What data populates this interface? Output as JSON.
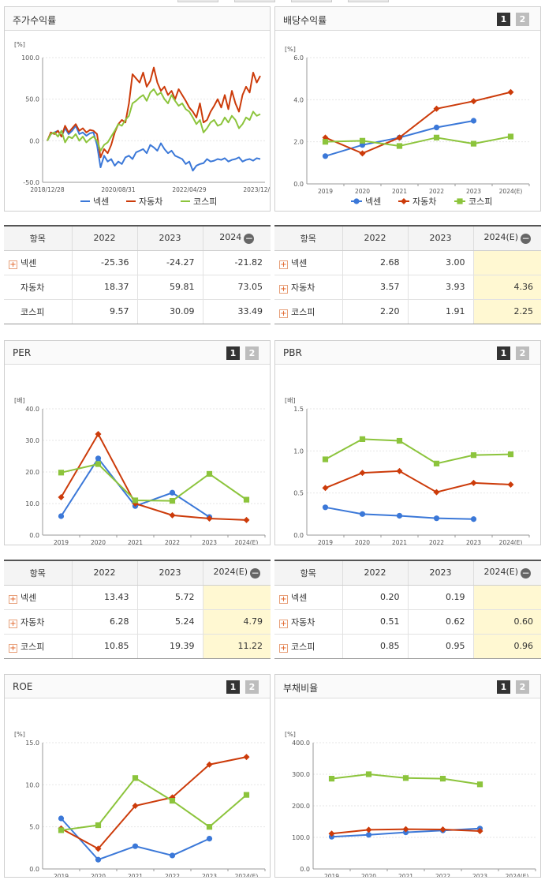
{
  "top_tabs": [
    "",
    "",
    "",
    "",
    ""
  ],
  "legend": [
    "넥센",
    "자동차",
    "코스피"
  ],
  "colors": {
    "nexen": "#3b78d8",
    "auto": "#cc3b0a",
    "kospi": "#8cc43c"
  },
  "pager": {
    "one": "1",
    "two": "2"
  },
  "minus_icon": "−",
  "plus_icon": "+",
  "charts": {
    "stock": {
      "title": "주가수익률",
      "unit": "[%]",
      "chart_data": {
        "type": "line",
        "title": "주가수익률",
        "yticks": [
          "100.0",
          "50.0",
          "0.0",
          "-50.0"
        ],
        "ylim": [
          -50,
          100
        ],
        "xticks": [
          "2018/12/28",
          "2020/08/31",
          "2022/04/29",
          "2023/12/28"
        ],
        "x_range": [
          "2018/12/28",
          "2023/12/28"
        ],
        "grid": true,
        "series": [
          {
            "name": "넥센",
            "values": [
              0,
              8,
              10,
              12,
              5,
              15,
              8,
              12,
              18,
              8,
              10,
              6,
              9,
              10,
              -5,
              -32,
              -18,
              -25,
              -22,
              -30,
              -25,
              -28,
              -20,
              -18,
              -22,
              -14,
              -12,
              -10,
              -15,
              -5,
              -8,
              -12,
              -3,
              -10,
              -15,
              -12,
              -18,
              -20,
              -22,
              -28,
              -25,
              -36,
              -30,
              -28,
              -27,
              -22,
              -25,
              -24,
              -22,
              -23,
              -21,
              -25,
              -23,
              -22,
              -20,
              -25,
              -23,
              -22,
              -24,
              -21,
              -22
            ]
          },
          {
            "name": "자동차",
            "values": [
              0,
              10,
              8,
              12,
              5,
              18,
              10,
              15,
              20,
              12,
              15,
              10,
              13,
              12,
              8,
              -20,
              -10,
              -15,
              -5,
              10,
              20,
              25,
              22,
              45,
              80,
              75,
              70,
              82,
              65,
              72,
              88,
              70,
              60,
              65,
              55,
              60,
              50,
              62,
              55,
              48,
              40,
              35,
              28,
              45,
              22,
              25,
              35,
              42,
              50,
              40,
              55,
              38,
              60,
              45,
              35,
              55,
              65,
              58,
              82,
              70,
              78
            ]
          },
          {
            "name": "코스피",
            "values": [
              0,
              8,
              10,
              5,
              12,
              -2,
              5,
              3,
              8,
              0,
              5,
              -2,
              2,
              5,
              0,
              -12,
              -5,
              -2,
              5,
              12,
              20,
              18,
              25,
              30,
              45,
              48,
              52,
              55,
              48,
              58,
              62,
              55,
              58,
              50,
              45,
              55,
              48,
              42,
              45,
              38,
              35,
              28,
              20,
              25,
              10,
              15,
              22,
              25,
              18,
              20,
              28,
              22,
              30,
              25,
              15,
              20,
              28,
              25,
              35,
              30,
              32
            ]
          }
        ]
      }
    },
    "dividend": {
      "title": "배당수익률",
      "unit": "[%]",
      "chart_data": {
        "type": "line",
        "title": "배당수익률",
        "categories": [
          "2019",
          "2020",
          "2021",
          "2022",
          "2023",
          "2024(E)"
        ],
        "yticks": [
          "6.0",
          "4.0",
          "2.0",
          "0.0"
        ],
        "ylim": [
          0,
          6
        ],
        "grid": true,
        "series": [
          {
            "name": "넥센",
            "values": [
              1.32,
              1.85,
              2.2,
              2.68,
              3.0,
              null
            ]
          },
          {
            "name": "자동차",
            "values": [
              2.2,
              1.45,
              2.2,
              3.57,
              3.93,
              4.36
            ]
          },
          {
            "name": "코스피",
            "values": [
              2.0,
              2.05,
              1.8,
              2.2,
              1.91,
              2.25
            ]
          }
        ]
      }
    },
    "per": {
      "title": "PER",
      "unit": "[배]",
      "chart_data": {
        "type": "line",
        "title": "PER",
        "categories": [
          "2019",
          "2020",
          "2021",
          "2022",
          "2023",
          "2024(E)"
        ],
        "yticks": [
          "40.0",
          "30.0",
          "20.0",
          "10.0",
          "0.0"
        ],
        "ylim": [
          0,
          40
        ],
        "grid": true,
        "series": [
          {
            "name": "넥센",
            "values": [
              6.0,
              24.3,
              9.2,
              13.43,
              5.72,
              null
            ]
          },
          {
            "name": "자동차",
            "values": [
              12.0,
              32.0,
              10.0,
              6.28,
              5.24,
              4.79
            ]
          },
          {
            "name": "코스피",
            "values": [
              19.8,
              22.5,
              11.0,
              10.85,
              19.39,
              11.22
            ]
          }
        ]
      }
    },
    "pbr": {
      "title": "PBR",
      "unit": "[배]",
      "chart_data": {
        "type": "line",
        "title": "PBR",
        "categories": [
          "2019",
          "2020",
          "2021",
          "2022",
          "2023",
          "2024(E)"
        ],
        "yticks": [
          "1.5",
          "1.0",
          "0.5",
          "0.0"
        ],
        "ylim": [
          0,
          1.5
        ],
        "grid": true,
        "series": [
          {
            "name": "넥센",
            "values": [
              0.33,
              0.25,
              0.23,
              0.2,
              0.19,
              null
            ]
          },
          {
            "name": "자동차",
            "values": [
              0.56,
              0.74,
              0.76,
              0.51,
              0.62,
              0.6
            ]
          },
          {
            "name": "코스피",
            "values": [
              0.9,
              1.14,
              1.12,
              0.85,
              0.95,
              0.96
            ]
          }
        ]
      }
    },
    "roe": {
      "title": "ROE",
      "unit": "[%]",
      "chart_data": {
        "type": "line",
        "title": "ROE",
        "categories": [
          "2019",
          "2020",
          "2021",
          "2022",
          "2023",
          "2024(E)"
        ],
        "yticks": [
          "15.0",
          "10.0",
          "5.0",
          "0.0"
        ],
        "ylim": [
          0,
          15
        ],
        "grid": true,
        "series": [
          {
            "name": "넥센",
            "values": [
              6.0,
              1.1,
              2.7,
              1.6,
              3.6,
              null
            ]
          },
          {
            "name": "자동차",
            "values": [
              4.8,
              2.4,
              7.5,
              8.5,
              12.4,
              13.3
            ]
          },
          {
            "name": "코스피",
            "values": [
              4.6,
              5.2,
              10.8,
              8.1,
              5.0,
              8.8
            ]
          }
        ]
      }
    },
    "debt": {
      "title": "부채비율",
      "unit": "[%]",
      "chart_data": {
        "type": "line",
        "title": "부채비율",
        "categories": [
          "2019",
          "2020",
          "2021",
          "2022",
          "2023",
          "2024(E)"
        ],
        "yticks": [
          "400.0",
          "300.0",
          "200.0",
          "100.0",
          "0.0"
        ],
        "ylim": [
          0,
          400
        ],
        "grid": true,
        "series": [
          {
            "name": "넥센",
            "values": [
              102,
              108,
              116,
              122,
              128,
              null
            ]
          },
          {
            "name": "자동차",
            "values": [
              112,
              124,
              126,
              125,
              120,
              null
            ]
          },
          {
            "name": "코스피",
            "values": [
              286,
              300,
              288,
              286,
              268,
              null
            ]
          }
        ]
      }
    }
  },
  "tables": {
    "stock": {
      "headers": [
        "항목",
        "2022",
        "2023",
        "2024"
      ],
      "rows": [
        {
          "label": "넥센",
          "icon": true,
          "values": [
            "-25.36",
            "-24.27",
            "-21.82"
          ]
        },
        {
          "label": "자동차",
          "icon": false,
          "values": [
            "18.37",
            "59.81",
            "73.05"
          ]
        },
        {
          "label": "코스피",
          "icon": false,
          "values": [
            "9.57",
            "30.09",
            "33.49"
          ]
        }
      ]
    },
    "dividend": {
      "headers": [
        "항목",
        "2022",
        "2023",
        "2024(E)"
      ],
      "rows": [
        {
          "label": "넥센",
          "icon": true,
          "values": [
            "2.68",
            "3.00",
            ""
          ]
        },
        {
          "label": "자동차",
          "icon": true,
          "values": [
            "3.57",
            "3.93",
            "4.36"
          ]
        },
        {
          "label": "코스피",
          "icon": true,
          "values": [
            "2.20",
            "1.91",
            "2.25"
          ]
        }
      ]
    },
    "per": {
      "headers": [
        "항목",
        "2022",
        "2023",
        "2024(E)"
      ],
      "rows": [
        {
          "label": "넥센",
          "icon": true,
          "values": [
            "13.43",
            "5.72",
            ""
          ]
        },
        {
          "label": "자동차",
          "icon": true,
          "values": [
            "6.28",
            "5.24",
            "4.79"
          ]
        },
        {
          "label": "코스피",
          "icon": true,
          "values": [
            "10.85",
            "19.39",
            "11.22"
          ]
        }
      ]
    },
    "pbr": {
      "headers": [
        "항목",
        "2022",
        "2023",
        "2024(E)"
      ],
      "rows": [
        {
          "label": "넥센",
          "icon": true,
          "values": [
            "0.20",
            "0.19",
            ""
          ]
        },
        {
          "label": "자동차",
          "icon": true,
          "values": [
            "0.51",
            "0.62",
            "0.60"
          ]
        },
        {
          "label": "코스피",
          "icon": true,
          "values": [
            "0.85",
            "0.95",
            "0.96"
          ]
        }
      ]
    }
  }
}
